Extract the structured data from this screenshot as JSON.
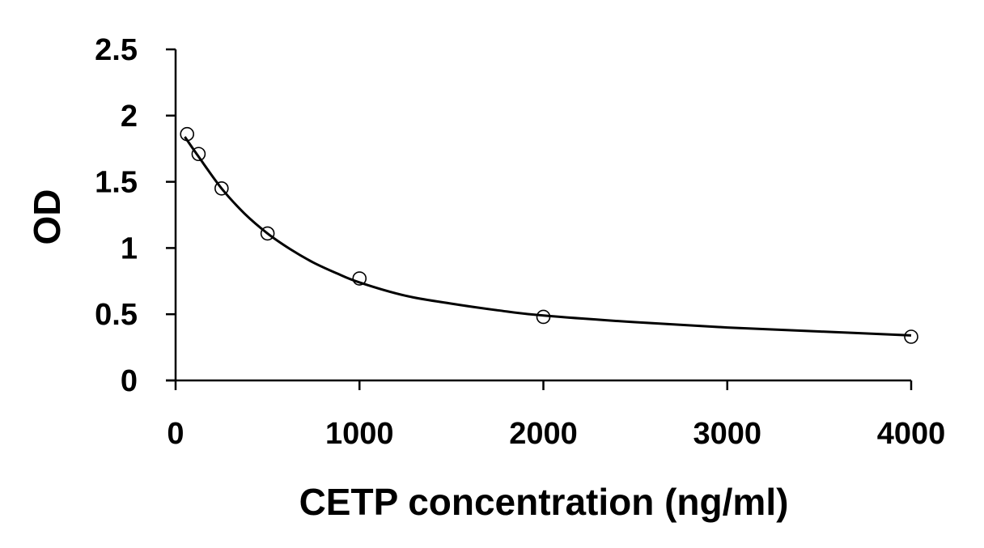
{
  "chart_data": {
    "type": "scatter",
    "title": "",
    "xlabel": "CETP concentration (ng/ml)",
    "ylabel": "OD",
    "xlim": [
      0,
      4000
    ],
    "ylim": [
      0,
      2.5
    ],
    "x_ticks": [
      0,
      1000,
      2000,
      3000,
      4000
    ],
    "y_ticks": [
      0,
      0.5,
      1,
      1.5,
      2,
      2.5
    ],
    "x_tick_labels": [
      "0",
      "1000",
      "2000",
      "3000",
      "4000"
    ],
    "y_tick_labels": [
      "0",
      "0.5",
      "1",
      "1.5",
      "2",
      "2.5"
    ],
    "grid": false,
    "legend": "none",
    "series": [
      {
        "type": "scatter",
        "marker": "open-circle",
        "points": [
          {
            "x": 62.5,
            "y": 1.86
          },
          {
            "x": 125,
            "y": 1.71
          },
          {
            "x": 250,
            "y": 1.45
          },
          {
            "x": 500,
            "y": 1.11
          },
          {
            "x": 1000,
            "y": 0.77
          },
          {
            "x": 2000,
            "y": 0.48
          },
          {
            "x": 4000,
            "y": 0.33
          }
        ]
      },
      {
        "type": "line",
        "points": [
          {
            "x": 50,
            "y": 1.84
          },
          {
            "x": 125,
            "y": 1.69
          },
          {
            "x": 250,
            "y": 1.45
          },
          {
            "x": 375,
            "y": 1.26
          },
          {
            "x": 500,
            "y": 1.11
          },
          {
            "x": 625,
            "y": 0.99
          },
          {
            "x": 750,
            "y": 0.89
          },
          {
            "x": 875,
            "y": 0.81
          },
          {
            "x": 1000,
            "y": 0.74
          },
          {
            "x": 1250,
            "y": 0.64
          },
          {
            "x": 1500,
            "y": 0.58
          },
          {
            "x": 1750,
            "y": 0.53
          },
          {
            "x": 2000,
            "y": 0.49
          },
          {
            "x": 2500,
            "y": 0.44
          },
          {
            "x": 3000,
            "y": 0.4
          },
          {
            "x": 3500,
            "y": 0.37
          },
          {
            "x": 4000,
            "y": 0.34
          }
        ]
      }
    ]
  }
}
